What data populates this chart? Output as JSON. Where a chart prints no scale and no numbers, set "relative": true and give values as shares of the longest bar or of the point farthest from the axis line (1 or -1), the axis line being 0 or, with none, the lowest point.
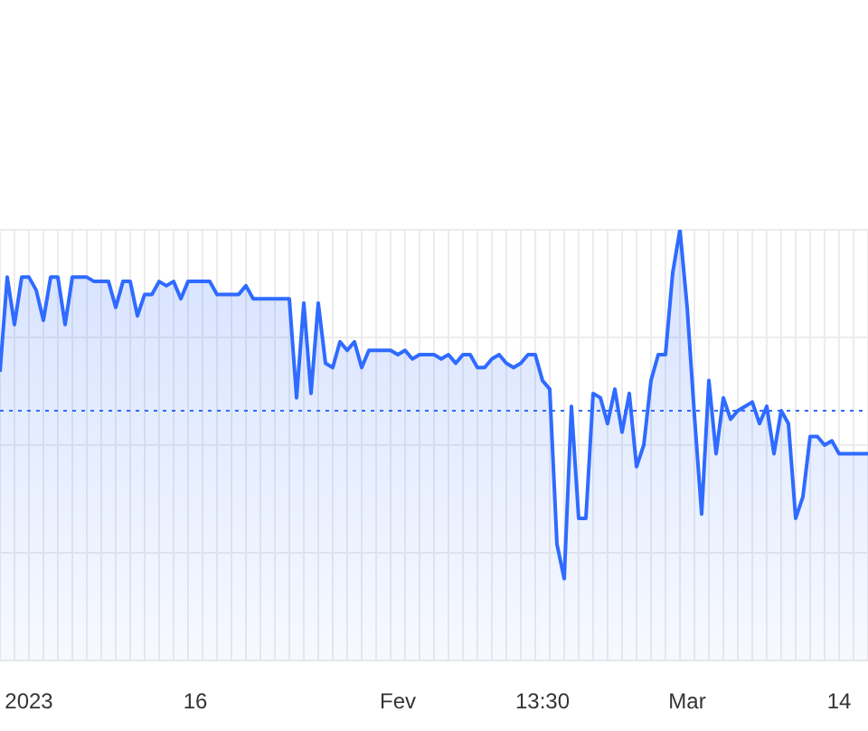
{
  "chart_data": {
    "type": "area",
    "relative": true,
    "grid": true,
    "legend": false,
    "marker": "none",
    "line_style": "solid",
    "categories": [
      null,
      null,
      null,
      null,
      "2023",
      null,
      null,
      null,
      null,
      null,
      null,
      null,
      null,
      null,
      null,
      null,
      null,
      null,
      null,
      null,
      null,
      null,
      null,
      null,
      null,
      null,
      null,
      "16",
      null,
      null,
      null,
      null,
      null,
      null,
      null,
      null,
      null,
      null,
      null,
      null,
      null,
      null,
      null,
      null,
      null,
      null,
      null,
      null,
      null,
      null,
      null,
      null,
      null,
      null,
      null,
      "Fev",
      null,
      null,
      null,
      null,
      null,
      null,
      null,
      null,
      null,
      null,
      null,
      null,
      null,
      null,
      null,
      null,
      null,
      null,
      null,
      "13:30",
      null,
      null,
      null,
      null,
      null,
      null,
      null,
      null,
      null,
      null,
      null,
      null,
      null,
      null,
      null,
      null,
      null,
      null,
      null,
      "Mar",
      null,
      null,
      null,
      null,
      null,
      null,
      null,
      null,
      null,
      null,
      null,
      null,
      null,
      null,
      null,
      null,
      null,
      null,
      null,
      null,
      "14",
      null,
      null,
      null,
      null
    ],
    "series": [
      {
        "color": "#2f6bff",
        "values": [
          0.67,
          0.89,
          0.78,
          0.89,
          0.89,
          0.86,
          0.79,
          0.89,
          0.89,
          0.78,
          0.89,
          0.89,
          0.89,
          0.88,
          0.88,
          0.88,
          0.82,
          0.88,
          0.88,
          0.8,
          0.85,
          0.85,
          0.88,
          0.87,
          0.88,
          0.84,
          0.88,
          0.88,
          0.88,
          0.88,
          0.85,
          0.85,
          0.85,
          0.85,
          0.87,
          0.84,
          0.84,
          0.84,
          0.84,
          0.84,
          0.84,
          0.61,
          0.83,
          0.62,
          0.83,
          0.69,
          0.68,
          0.74,
          0.72,
          0.74,
          0.68,
          0.72,
          0.72,
          0.72,
          0.72,
          0.71,
          0.72,
          0.7,
          0.71,
          0.71,
          0.71,
          0.7,
          0.71,
          0.69,
          0.71,
          0.71,
          0.68,
          0.68,
          0.7,
          0.71,
          0.69,
          0.68,
          0.69,
          0.71,
          0.71,
          0.65,
          0.63,
          0.27,
          0.19,
          0.59,
          0.33,
          0.33,
          0.62,
          0.61,
          0.55,
          0.63,
          0.53,
          0.62,
          0.45,
          0.5,
          0.65,
          0.71,
          0.71,
          0.9,
          1,
          0.82,
          0.57,
          0.34,
          0.65,
          0.48,
          0.61,
          0.56,
          0.58,
          0.59,
          0.6,
          0.55,
          0.59,
          0.48,
          0.58,
          0.55,
          0.33,
          0.38,
          0.52,
          0.52,
          0.5,
          0.51,
          0.48,
          0.48,
          0.48,
          0.48,
          0.48
        ]
      }
    ],
    "ref_lines": [
      {
        "axis": "y",
        "value": 0.58,
        "color": "#2f6bff",
        "line_style": "dotted"
      }
    ]
  }
}
